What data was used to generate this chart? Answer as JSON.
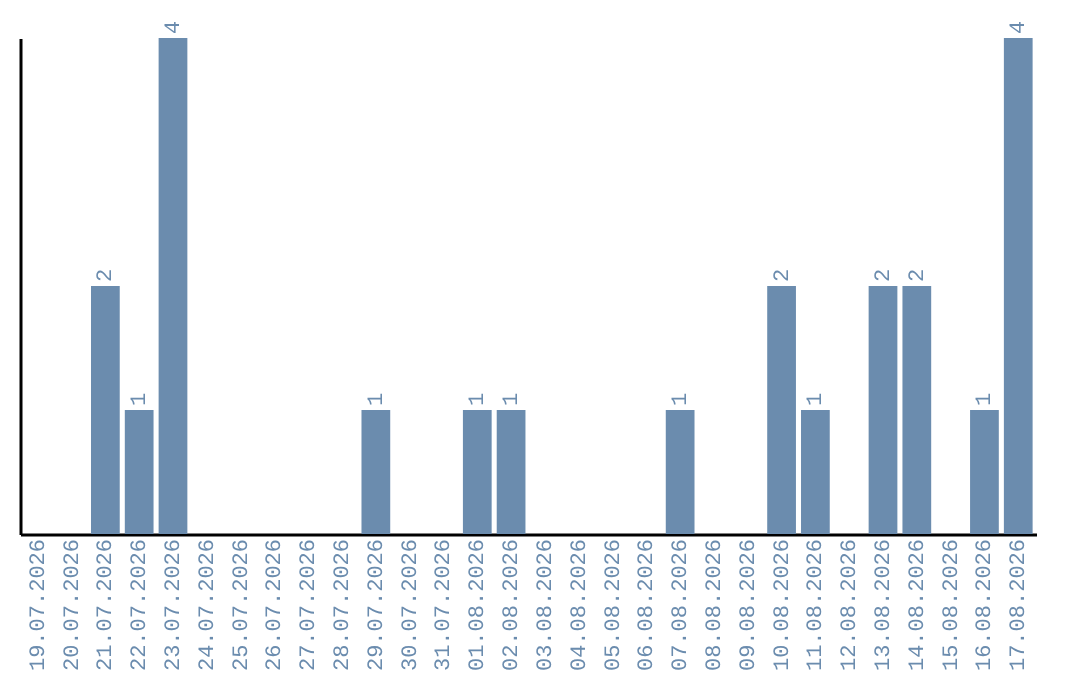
{
  "chart_data": {
    "type": "bar",
    "categories": [
      "19.07.2026",
      "20.07.2026",
      "21.07.2026",
      "22.07.2026",
      "23.07.2026",
      "24.07.2026",
      "25.07.2026",
      "26.07.2026",
      "27.07.2026",
      "28.07.2026",
      "29.07.2026",
      "30.07.2026",
      "31.07.2026",
      "01.08.2026",
      "02.08.2026",
      "03.08.2026",
      "04.08.2026",
      "05.08.2026",
      "06.08.2026",
      "07.08.2026",
      "08.08.2026",
      "09.08.2026",
      "10.08.2026",
      "11.08.2026",
      "12.08.2026",
      "13.08.2026",
      "14.08.2026",
      "15.08.2026",
      "16.08.2026",
      "17.08.2026"
    ],
    "values": [
      0,
      0,
      2,
      1,
      4,
      0,
      0,
      0,
      0,
      0,
      1,
      0,
      0,
      1,
      1,
      0,
      0,
      0,
      0,
      1,
      0,
      0,
      2,
      1,
      0,
      2,
      2,
      0,
      1,
      4
    ],
    "value_labels": [
      null,
      null,
      "2",
      "1",
      "4",
      null,
      null,
      null,
      null,
      null,
      "1",
      null,
      null,
      "1",
      "1",
      null,
      null,
      null,
      null,
      "1",
      null,
      null,
      "2",
      "1",
      null,
      "2",
      "2",
      null,
      "1",
      "4"
    ],
    "color": "#6b8cae",
    "ylim": [
      0,
      4
    ],
    "tick_labels": "x"
  }
}
